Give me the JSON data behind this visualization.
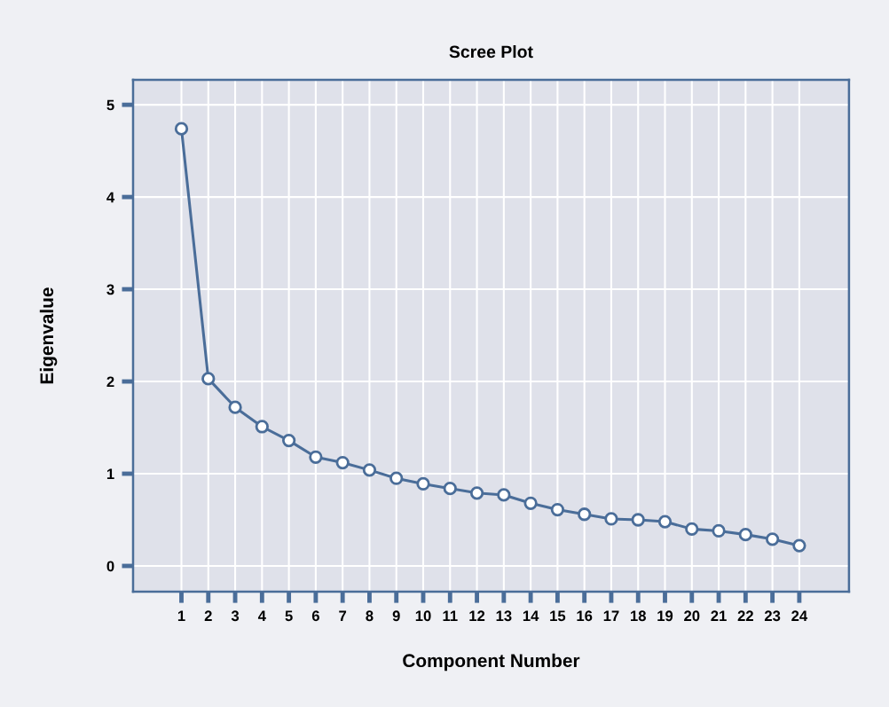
{
  "chart_data": {
    "type": "line",
    "title": "Scree Plot",
    "xlabel": "Component Number",
    "ylabel": "Eigenvalue",
    "x": [
      1,
      2,
      3,
      4,
      5,
      6,
      7,
      8,
      9,
      10,
      11,
      12,
      13,
      14,
      15,
      16,
      17,
      18,
      19,
      20,
      21,
      22,
      23,
      24
    ],
    "series": [
      {
        "color": "#4a6d99",
        "values": [
          4.74,
          2.03,
          1.72,
          1.51,
          1.36,
          1.18,
          1.12,
          1.04,
          0.95,
          0.89,
          0.84,
          0.79,
          0.77,
          0.68,
          0.61,
          0.56,
          0.51,
          0.5,
          0.48,
          0.4,
          0.38,
          0.34,
          0.29,
          0.22
        ]
      }
    ],
    "xlim": [
      -0.8,
      25.85
    ],
    "xticks": [
      1,
      2,
      3,
      4,
      5,
      6,
      7,
      8,
      9,
      10,
      11,
      12,
      13,
      14,
      15,
      16,
      17,
      18,
      19,
      20,
      21,
      22,
      23,
      24
    ],
    "ylim": [
      -0.28,
      5.27
    ],
    "yticks": [
      0,
      1,
      2,
      3,
      4,
      5
    ],
    "grid": true,
    "marker": "circle",
    "line_style": "solid",
    "legend": false
  }
}
